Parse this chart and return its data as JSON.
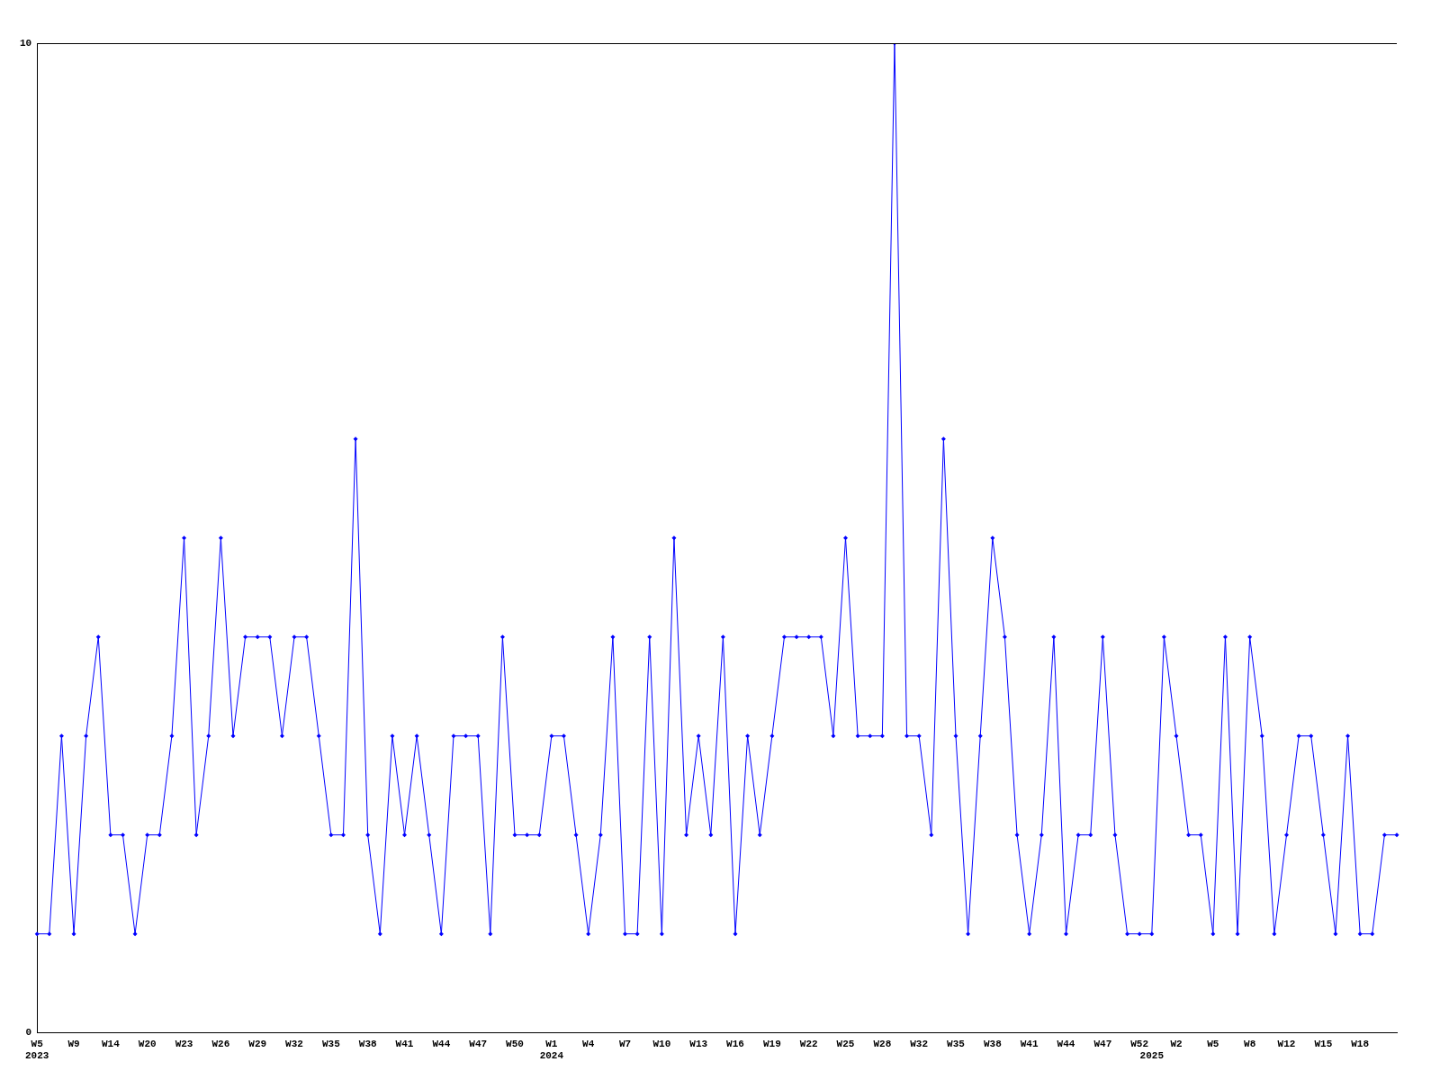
{
  "chart_data": {
    "type": "line",
    "categories": [
      "W5\n2023",
      null,
      null,
      "W9",
      null,
      null,
      "W14",
      null,
      null,
      "W20",
      null,
      null,
      "W23",
      null,
      null,
      "W26",
      null,
      null,
      "W29",
      null,
      null,
      "W32",
      null,
      null,
      "W35",
      null,
      null,
      "W38",
      null,
      null,
      "W41",
      null,
      null,
      "W44",
      null,
      null,
      "W47",
      null,
      null,
      "W50",
      null,
      null,
      "W1\n2024",
      null,
      null,
      "W4",
      null,
      null,
      "W7",
      null,
      null,
      "W10",
      null,
      null,
      "W13",
      null,
      null,
      "W16",
      null,
      null,
      "W19",
      null,
      null,
      "W22",
      null,
      null,
      "W25",
      null,
      null,
      "W28",
      null,
      null,
      "W32",
      null,
      null,
      "W35",
      null,
      null,
      "W38",
      null,
      null,
      "W41",
      null,
      null,
      "W44",
      null,
      null,
      "W47",
      null,
      null,
      "W52",
      "\n2025",
      null,
      "W2",
      null,
      null,
      "W5",
      null,
      null,
      "W8",
      null,
      null,
      "W12",
      null,
      null,
      "W15",
      null,
      null,
      "W18",
      null,
      null,
      null
    ],
    "series": [
      {
        "color": "#0000ff",
        "values": [
          1,
          1,
          3,
          1,
          3,
          4,
          2,
          2,
          1,
          2,
          2,
          3,
          5,
          2,
          3,
          5,
          3,
          4,
          4,
          4,
          3,
          4,
          4,
          3,
          2,
          2,
          6,
          2,
          1,
          3,
          2,
          3,
          2,
          1,
          3,
          3,
          3,
          1,
          4,
          2,
          2,
          2,
          3,
          3,
          2,
          1,
          2,
          4,
          1,
          1,
          4,
          1,
          5,
          2,
          3,
          2,
          4,
          1,
          3,
          2,
          3,
          4,
          4,
          4,
          4,
          3,
          5,
          3,
          3,
          3,
          10,
          3,
          3,
          2,
          6,
          3,
          1,
          3,
          5,
          4,
          2,
          1,
          2,
          4,
          1,
          2,
          2,
          4,
          2,
          1,
          1,
          1,
          4,
          3,
          2,
          2,
          1,
          4,
          1,
          4,
          3,
          1,
          2,
          3,
          3,
          2,
          1,
          3,
          1,
          1,
          2,
          2
        ]
      }
    ],
    "ylim": [
      0,
      10
    ],
    "yticks": [
      0,
      10
    ],
    "marker": "diamond",
    "line_style": "solid",
    "legend": false
  }
}
